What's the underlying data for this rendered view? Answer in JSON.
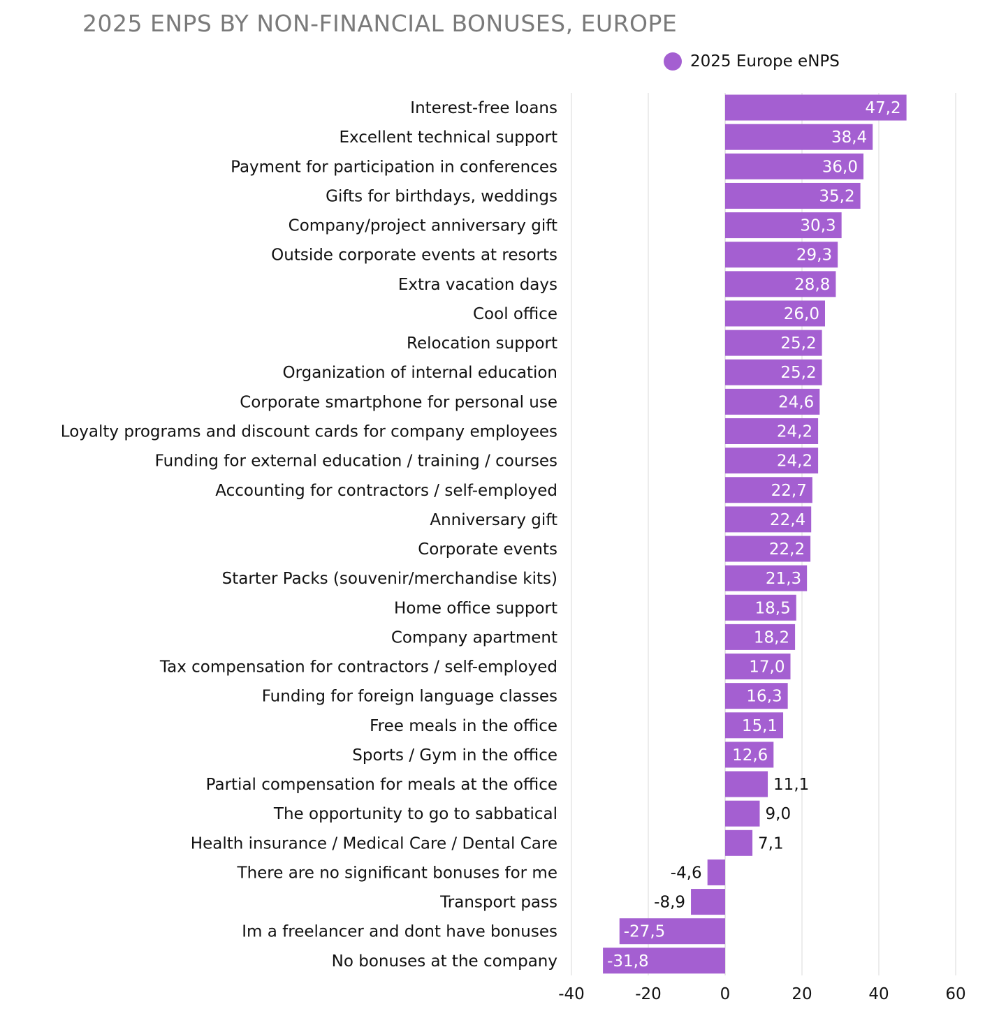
{
  "chart_data": {
    "type": "bar",
    "orientation": "horizontal",
    "title": "2025 ENPS BY NON-FINANCIAL BONUSES, EUROPE",
    "legend": [
      {
        "name": "2025 Europe eNPS",
        "color": "#a45fd1"
      }
    ],
    "legend_position": "top-right",
    "xlim": [
      -40,
      60
    ],
    "xticks": [
      -40,
      -20,
      0,
      20,
      40,
      60
    ],
    "grid": true,
    "categories": [
      "Interest-free loans",
      "Excellent technical support",
      "Payment for participation in conferences",
      "Gifts for birthdays, weddings",
      "Company/project anniversary gift",
      "Outside corporate events at resorts",
      "Extra vacation days",
      "Cool office",
      "Relocation support",
      "Organization of internal education",
      "Corporate smartphone for personal use",
      "Loyalty programs and discount cards for company employees",
      "Funding for external education / training / courses",
      "Accounting for contractors / self-employed",
      "Anniversary gift",
      "Corporate events",
      "Starter Packs (souvenir/merchandise kits)",
      "Home office support",
      "Company apartment",
      "Tax compensation for contractors / self-employed",
      "Funding for foreign language classes",
      "Free meals in the office",
      "Sports / Gym in the office",
      "Partial compensation for meals at the office",
      "The opportunity to go to sabbatical",
      "Health insurance / Medical Care / Dental Care",
      "There are no significant bonuses for me",
      "Transport pass",
      "Im a freelancer and dont have bonuses",
      "No bonuses at the company"
    ],
    "series": [
      {
        "name": "2025 Europe eNPS",
        "values": [
          47.2,
          38.4,
          36.0,
          35.2,
          30.3,
          29.3,
          28.8,
          26.0,
          25.2,
          25.2,
          24.6,
          24.2,
          24.2,
          22.7,
          22.4,
          22.2,
          21.3,
          18.5,
          18.2,
          17.0,
          16.3,
          15.1,
          12.6,
          11.1,
          9.0,
          7.1,
          -4.6,
          -8.9,
          -27.5,
          -31.8
        ],
        "labels": [
          "47,2",
          "38,4",
          "36,0",
          "35,2",
          "30,3",
          "29,3",
          "28,8",
          "26,0",
          "25,2",
          "25,2",
          "24,6",
          "24,2",
          "24,2",
          "22,7",
          "22,4",
          "22,2",
          "21,3",
          "18,5",
          "18,2",
          "17,0",
          "16,3",
          "15,1",
          "12,6",
          "11,1",
          "9,0",
          "7,1",
          "-4,6",
          "-8,9",
          "-27,5",
          "-31,8"
        ]
      }
    ]
  },
  "colors": {
    "bar": "#a45fd1",
    "grid": "#d9d9d9",
    "label_inside": "#ffffff",
    "label_outside": "#111111"
  }
}
